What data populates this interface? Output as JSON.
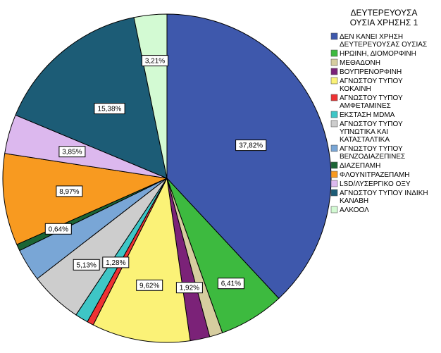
{
  "chart_data": {
    "type": "pie",
    "legend_title": [
      "ΔΕΥΤΕΡΕΥΟΥΣΑ",
      "ΟΥΣΙΑ ΧΡΗΣΗΣ 1"
    ],
    "legend_position": "right",
    "start": "top, clockwise",
    "slices": [
      {
        "label": [
          "ΔΕΝ ΚΑΝΕΙ ΧΡΗΣΗ",
          "ΔΕΥΤΕΡΕΥΟΥΣΑΣ ΟΥΣΙΑΣ"
        ],
        "value": 37.82,
        "display": "37,82%",
        "color": "#3e58ac"
      },
      {
        "label": [
          "ΗΡΩΙΝΗ, ΔΙΟΜΟΡΦΙΝΗ"
        ],
        "value": 6.41,
        "display": "6,41%",
        "color": "#3dba3f"
      },
      {
        "label": [
          "ΜΕΘΑΔΟΝΗ"
        ],
        "value": 1.28,
        "display": "",
        "color": "#d6cd9f"
      },
      {
        "label": [
          "ΒΟΥΠΡΕΝΟΡΦΙΝΗ"
        ],
        "value": 1.92,
        "display": "1,92%",
        "color": "#7b2278"
      },
      {
        "label": [
          "ΑΓΝΩΣΤΟΥ ΤΥΠΟΥ",
          "ΚΟΚΑΙΝΗ"
        ],
        "value": 9.62,
        "display": "9,62%",
        "color": "#fbf277"
      },
      {
        "label": [
          "ΑΓΝΩΣΤΟΥ ΤΥΠΟΥ",
          "ΑΜΦΕΤΑΜΙΝΕΣ"
        ],
        "value": 0.64,
        "display": "",
        "color": "#ee3233"
      },
      {
        "label": [
          "ΕΚΣΤΑΣΗ MDMA"
        ],
        "value": 1.28,
        "display": "1,28%",
        "color": "#3ec6c6"
      },
      {
        "label": [
          "ΑΓΝΩΣΤΟΥ ΤΥΠΟΥ",
          "ΥΠΝΩΤΙΚΑ ΚΑΙ",
          "ΚΑΤΑΣΤΑΛΤΙΚΑ"
        ],
        "value": 5.13,
        "display": "5,13%",
        "color": "#cdcdcd"
      },
      {
        "label": [
          "ΑΓΝΩΣΤΟΥ ΤΥΠΟΥ",
          "ΒΕΝΖΟΔΙΑΖΕΠΙΝΕΣ"
        ],
        "value": 3.21,
        "display": "",
        "color": "#79a6d6"
      },
      {
        "label": [
          "ΔΙΑΖΕΠΑΜΗ"
        ],
        "value": 0.64,
        "display": "0,64%",
        "color": "#1b6535"
      },
      {
        "label": [
          "ΦΛΟΥΝΙΤΡΑΖΕΠΑΜΗ"
        ],
        "value": 8.97,
        "display": "8,97%",
        "color": "#f89a20"
      },
      {
        "label": [
          "LSD/ΛΥΣΕΡΓΙΚΟ ΟΞΥ"
        ],
        "value": 3.85,
        "display": "3,85%",
        "color": "#dcb8ee"
      },
      {
        "label": [
          "ΑΓΝΩΣΤΟΥ ΤΥΠΟΥ ΙΝΔΙΚΗ",
          "ΚΑΝΑΒΗ"
        ],
        "value": 15.38,
        "display": "15,38%",
        "color": "#1c5c76"
      },
      {
        "label": [
          "ΑΛΚΟΟΛ"
        ],
        "value": 3.21,
        "display": "3,21%",
        "color": "#d3fad3"
      }
    ]
  }
}
